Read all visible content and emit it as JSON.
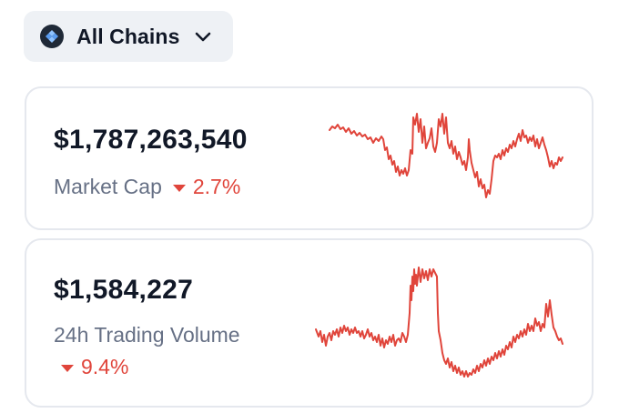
{
  "chain_selector": {
    "label": "All Chains",
    "icon": "chain-logo-icon",
    "dropdown_icon": "chevron-down-icon"
  },
  "market_cap": {
    "value": "$1,787,263,540",
    "label": "Market Cap",
    "change": "2.7%",
    "direction": "down"
  },
  "trading_volume": {
    "value": "$1,584,227",
    "label": "24h Trading Volume",
    "change": "9.4%",
    "direction": "down"
  },
  "colors": {
    "negative": "#e0453b",
    "text_primary": "#111827",
    "text_secondary": "#667085",
    "card_border": "#e5e8ee",
    "selector_bg": "#eef1f5"
  }
}
